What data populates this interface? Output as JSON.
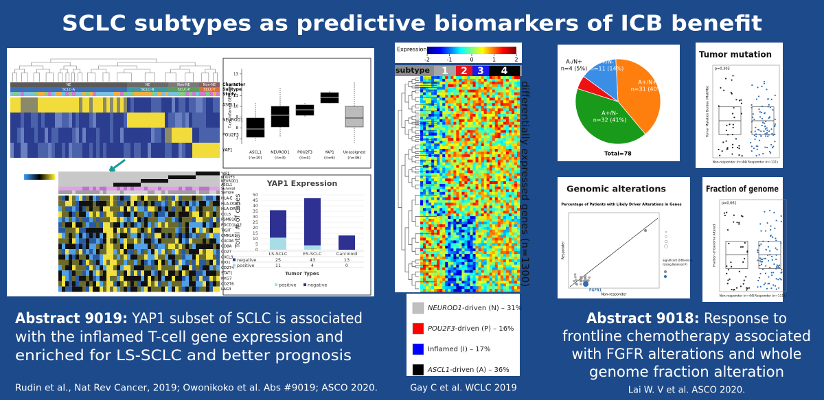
{
  "title": "SCLC subtypes as predictive biomarkers of ICB benefit",
  "left": {
    "top_groups": [
      "NE",
      "NE",
      "Non-NE",
      "Non-NE"
    ],
    "top_subtypes": [
      "SCLC-A",
      "SCLC-N",
      "SCLC-P",
      "SCLC-Y"
    ],
    "annotation_labels": [
      "Character",
      "Subtype",
      "Study"
    ],
    "top_genes": [
      "ASCL1",
      "NEUROD1",
      "POU2F3",
      "YAP1"
    ],
    "bottom_annotations": [
      "YAP1",
      "POU2F3",
      "NEUROD1",
      "ASCL1",
      "Survival",
      "Sample"
    ],
    "bottom_genes": [
      "HLA-E",
      "HLA-DQA1",
      "HLA-DRB1",
      "CCL5",
      "PSMB10",
      "PDCD1LG2",
      "TIGIT",
      "CMKLR1",
      "CXCR6",
      "CD8A",
      "CD27",
      "CXCL9",
      "IDO1",
      "CD274",
      "STAT1",
      "NKG7",
      "CD276",
      "LAG3"
    ],
    "boxplot": {
      "ylabel": "T-cell inflamed GEP score",
      "ylim": [
        6.5,
        13.5
      ],
      "yticks": [
        7,
        8,
        9,
        10,
        11,
        12,
        13
      ],
      "categories": [
        "ASCL1",
        "NEUROD1",
        "POU2F3",
        "YAP1",
        "Unassigned"
      ],
      "counts": [
        "(n=10)",
        "(n=3)",
        "(n=4)",
        "(n=6)",
        "(n=36)"
      ]
    },
    "yap1_chart": {
      "type": "bar",
      "stacked": true,
      "title": "YAP1 Expression",
      "ylabel": "Total # of cases",
      "xlabel": "Tumor Types",
      "categories": [
        "LS-SCLC",
        "ES-SCLC",
        "Carcinoid"
      ],
      "series": [
        {
          "name": "negative",
          "color": "#2e3192",
          "values": [
            25,
            43,
            13
          ]
        },
        {
          "name": "positive",
          "color": "#a8dde6",
          "values": [
            11,
            4,
            0
          ]
        }
      ],
      "ylim": [
        0,
        50
      ],
      "yticks": [
        0,
        5,
        10,
        15,
        20,
        25,
        30,
        35,
        40,
        45,
        50
      ]
    },
    "caption_label": "Abstract 9019:",
    "caption_lines": [
      "YAP1 subset of SCLC is associated",
      "with the inflamed T-cell gene expression and",
      "enriched for LS-SCLC and better prognosis"
    ],
    "citation": "Rudin et al., Nat Rev Cancer, 2019; Owonikoko et al. Abs #9019; ASCO 2020."
  },
  "middle": {
    "colorbar_label": "Expression",
    "colorbar_ticks": [
      -2,
      -1,
      0,
      1,
      2
    ],
    "subtype_label": "subtype",
    "subtypes": [
      1,
      2,
      3,
      4
    ],
    "subtype_colors": [
      "#a6a6a6",
      "#e8141b",
      "#1a1ae6",
      "#000000"
    ],
    "genes_label": "differentially expressed genes (n=1300)",
    "legend": [
      {
        "gene": "NEUROD1",
        "text": "-driven (N) – 31%",
        "color": "#bfbfbf"
      },
      {
        "gene": "POU2F3",
        "text": "-driven (P) – 16%",
        "color": "#ff0000"
      },
      {
        "gene": "",
        "text": "Inflamed (I) – 17%",
        "color": "#0000ff"
      },
      {
        "gene": "ASCL1",
        "text": "-driven (A) – 36%",
        "color": "#000000"
      }
    ],
    "citation": "Gay C et al. WCLC 2019"
  },
  "right": {
    "pie": {
      "type": "pie",
      "labels": [
        "A+/N+",
        "A+/N-",
        "A-/N+",
        "A-/N-"
      ],
      "values": [
        31,
        32,
        4,
        11
      ],
      "value_labels": [
        "n=31 (40%)",
        "n=32 (41%)",
        "n=4 (5%)",
        "n=11 (14%)"
      ],
      "colors": [
        "#ff7f0e",
        "#1a9a1a",
        "#ee1111",
        "#3a8ee6"
      ],
      "total_label": "Total=78"
    },
    "tumor_mutation": {
      "title": "Tumor mutation",
      "ylabel": "Tumor Mutation Burden (Mut/Mb)",
      "categories": [
        "Non-responder (n=44)",
        "Responder (n=111)"
      ],
      "pvalue": "p=0.303"
    },
    "genomic_alterations": {
      "title": "Genomic alterations",
      "plot_title": "Percentage of Patients with Likely Driver Alterations in Genes",
      "xlabel": "Non-responder",
      "ylabel": "Responder",
      "point_label": "FGFR1",
      "legend_lines": [
        "Significant Difference",
        "(Using Nominal P)"
      ]
    },
    "fraction_genome": {
      "title": "Fraction of genome",
      "ylabel": "Fraction of Genome Altered",
      "categories": [
        "Non-responder (n=44)",
        "Responder (n=111)"
      ],
      "pvalue": "p=0.061"
    },
    "caption_label": "Abstract 9018:",
    "caption_lines": [
      "Response to",
      "frontline chemotherapy associated",
      "with FGFR alterations and whole",
      "genome fraction alteration"
    ],
    "citation": "Lai W. V et al. ASCO 2020."
  }
}
